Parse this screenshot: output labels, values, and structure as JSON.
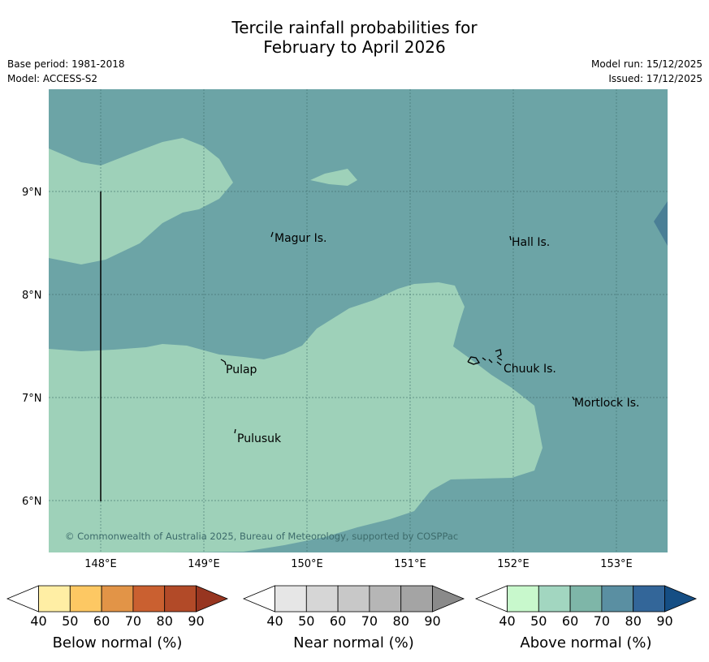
{
  "title": {
    "line1": "Tercile rainfall probabilities for",
    "line2": "February to April 2026"
  },
  "meta": {
    "base_period": "Base period: 1981-2018",
    "model": "Model: ACCESS-S2",
    "model_run": "Model run: 15/12/2025",
    "issued": "Issued: 17/12/2025"
  },
  "map": {
    "lat_labels": [
      "9°N",
      "8°N",
      "7°N",
      "6°N"
    ],
    "lon_labels": [
      "148°E",
      "149°E",
      "150°E",
      "151°E",
      "152°E",
      "153°E"
    ],
    "places": [
      "Magur Is.",
      "Hall Is.",
      "Pulap",
      "Pulusuk",
      "Chuuk Is.",
      "Mortlock Is."
    ],
    "copyright": "© Commonwealth of Australia 2025, Bureau of Meteorology, supported by COSPPac",
    "colors": {
      "above_50": "#9ed1b9",
      "above_60": "#6ca4a6",
      "above_70": "#4a7f96"
    }
  },
  "legend": {
    "ticks": [
      "40",
      "50",
      "60",
      "70",
      "80",
      "90"
    ],
    "below": {
      "label": "Below normal (%)",
      "colors": [
        "#ffeea4",
        "#fdc863",
        "#e29447",
        "#ca6030",
        "#b24a28",
        "#973520"
      ]
    },
    "near": {
      "label": "Near normal (%)",
      "colors": [
        "#e6e6e6",
        "#d6d6d6",
        "#c8c8c8",
        "#b6b6b6",
        "#a4a4a4",
        "#8a8a8a"
      ]
    },
    "above": {
      "label": "Above normal (%)",
      "colors": [
        "#c8f8cc",
        "#a2d6c0",
        "#7eb6a8",
        "#5a8fa2",
        "#336699",
        "#154e84"
      ]
    }
  }
}
